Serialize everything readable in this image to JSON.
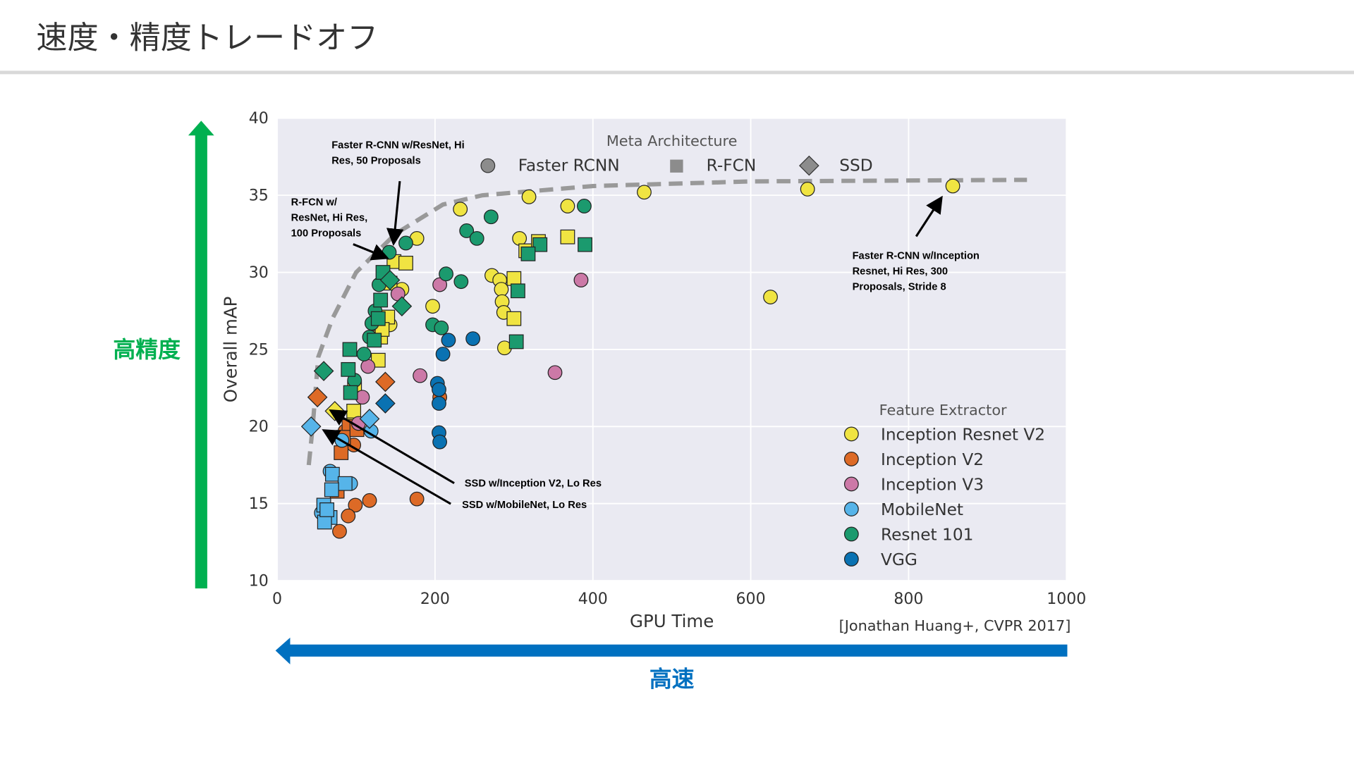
{
  "slide": {
    "title": "速度・精度トレードオフ",
    "accuracy_label": "高精度",
    "speed_label": "高速",
    "citation": "[Jonathan Huang+, CVPR 2017]",
    "colors": {
      "accuracy_arrow": "#00b050",
      "speed_arrow": "#0070c0"
    }
  },
  "chart_data": {
    "type": "scatter",
    "xlabel": "GPU Time",
    "ylabel": "Overall mAP",
    "xlim": [
      0,
      1000
    ],
    "ylim": [
      10,
      40
    ],
    "xticks": [
      "0",
      "200",
      "400",
      "600",
      "800",
      "1000"
    ],
    "yticks": [
      "10",
      "15",
      "20",
      "25",
      "30",
      "35",
      "40"
    ],
    "grid": true,
    "meta_legend": {
      "title": "Meta Architecture",
      "items": [
        {
          "label": "Faster RCNN",
          "marker": "circle"
        },
        {
          "label": "R-FCN",
          "marker": "square"
        },
        {
          "label": "SSD",
          "marker": "diamond"
        }
      ]
    },
    "feature_legend": {
      "title": "Feature Extractor",
      "placement": "bottom-right"
    },
    "series": [
      {
        "name": "Inception Resnet V2",
        "color": "#f0e442",
        "points": [
          [
            232,
            34.1,
            "c"
          ],
          [
            319,
            34.9,
            "c"
          ],
          [
            368,
            34.3,
            "c"
          ],
          [
            465,
            35.2,
            "c"
          ],
          [
            672,
            35.4,
            "c"
          ],
          [
            856,
            35.6,
            "c"
          ],
          [
            625,
            28.4,
            "c"
          ],
          [
            177,
            32.2,
            "c"
          ],
          [
            307,
            32.2,
            "c"
          ],
          [
            197,
            27.8,
            "c"
          ],
          [
            272,
            29.8,
            "c"
          ],
          [
            282,
            29.5,
            "c"
          ],
          [
            284,
            28.9,
            "c"
          ],
          [
            285,
            28.1,
            "c"
          ],
          [
            287,
            27.4,
            "c"
          ],
          [
            288,
            25.1,
            "c"
          ],
          [
            158,
            28.9,
            "c"
          ],
          [
            143,
            26.6,
            "c"
          ],
          [
            97,
            20.5,
            "c"
          ],
          [
            148,
            30.7,
            "s"
          ],
          [
            163,
            30.6,
            "s"
          ],
          [
            143,
            29.3,
            "s"
          ],
          [
            140,
            27.1,
            "s"
          ],
          [
            131,
            25.8,
            "s"
          ],
          [
            128,
            24.3,
            "s"
          ],
          [
            98,
            22.5,
            "s"
          ],
          [
            97,
            21.0,
            "s"
          ],
          [
            315,
            31.4,
            "s"
          ],
          [
            331,
            32.0,
            "s"
          ],
          [
            368,
            32.3,
            "s"
          ],
          [
            300,
            29.6,
            "s"
          ],
          [
            300,
            27.0,
            "s"
          ],
          [
            133,
            26.3,
            "s"
          ],
          [
            73,
            21.0,
            "d"
          ]
        ]
      },
      {
        "name": "Inception V2",
        "color": "#dd6a26",
        "points": [
          [
            177,
            15.3,
            "c"
          ],
          [
            117,
            15.2,
            "c"
          ],
          [
            99,
            14.9,
            "c"
          ],
          [
            90,
            14.2,
            "c"
          ],
          [
            79,
            13.2,
            "c"
          ],
          [
            206,
            21.9,
            "c"
          ],
          [
            97,
            18.8,
            "c"
          ],
          [
            86,
            19.7,
            "c"
          ],
          [
            91,
            20.0,
            "s"
          ],
          [
            84,
            19.3,
            "s"
          ],
          [
            81,
            18.3,
            "s"
          ],
          [
            101,
            19.8,
            "s"
          ],
          [
            76,
            15.8,
            "s"
          ],
          [
            51,
            21.9,
            "d"
          ],
          [
            137,
            22.9,
            "d"
          ]
        ]
      },
      {
        "name": "Inception V3",
        "color": "#cc79a7",
        "points": [
          [
            385,
            29.5,
            "c"
          ],
          [
            206,
            29.2,
            "c"
          ],
          [
            352,
            23.5,
            "c"
          ],
          [
            181,
            23.3,
            "c"
          ],
          [
            153,
            28.6,
            "c"
          ],
          [
            115,
            23.9,
            "c"
          ],
          [
            108,
            21.9,
            "c"
          ],
          [
            103,
            20.2,
            "c"
          ]
        ]
      },
      {
        "name": "MobileNet",
        "color": "#56b4e9",
        "points": [
          [
            93,
            16.3,
            "c"
          ],
          [
            82,
            19.1,
            "c"
          ],
          [
            119,
            19.7,
            "c"
          ],
          [
            67,
            17.1,
            "c"
          ],
          [
            56,
            14.4,
            "c"
          ],
          [
            70,
            16.9,
            "s"
          ],
          [
            86,
            16.3,
            "s"
          ],
          [
            69,
            15.9,
            "s"
          ],
          [
            59,
            14.9,
            "s"
          ],
          [
            67,
            14.1,
            "s"
          ],
          [
            60,
            13.8,
            "s"
          ],
          [
            63,
            14.6,
            "s"
          ],
          [
            43,
            20.0,
            "d"
          ],
          [
            117,
            20.5,
            "d"
          ]
        ]
      },
      {
        "name": "Resnet 101",
        "color": "#1b9a6e",
        "points": [
          [
            271,
            33.6,
            "c"
          ],
          [
            240,
            32.7,
            "c"
          ],
          [
            253,
            32.2,
            "c"
          ],
          [
            389,
            34.3,
            "c"
          ],
          [
            163,
            31.9,
            "c"
          ],
          [
            142,
            31.3,
            "c"
          ],
          [
            214,
            29.9,
            "c"
          ],
          [
            233,
            29.4,
            "c"
          ],
          [
            197,
            26.6,
            "c"
          ],
          [
            208,
            26.4,
            "c"
          ],
          [
            129,
            29.2,
            "c"
          ],
          [
            124,
            27.5,
            "c"
          ],
          [
            120,
            26.7,
            "c"
          ],
          [
            117,
            25.8,
            "c"
          ],
          [
            110,
            24.7,
            "c"
          ],
          [
            98,
            23.0,
            "c"
          ],
          [
            333,
            31.8,
            "s"
          ],
          [
            318,
            31.2,
            "s"
          ],
          [
            390,
            31.8,
            "s"
          ],
          [
            305,
            28.8,
            "s"
          ],
          [
            303,
            25.5,
            "s"
          ],
          [
            134,
            30.0,
            "s"
          ],
          [
            131,
            28.2,
            "s"
          ],
          [
            128,
            27.0,
            "s"
          ],
          [
            92,
            25.0,
            "s"
          ],
          [
            90,
            23.7,
            "s"
          ],
          [
            93,
            22.2,
            "s"
          ],
          [
            123,
            25.6,
            "s"
          ],
          [
            59,
            23.6,
            "d"
          ],
          [
            158,
            27.8,
            "d"
          ],
          [
            143,
            29.5,
            "d"
          ]
        ]
      },
      {
        "name": "VGG",
        "color": "#0a72b2",
        "points": [
          [
            217,
            25.6,
            "c"
          ],
          [
            248,
            25.7,
            "c"
          ],
          [
            210,
            24.7,
            "c"
          ],
          [
            203,
            22.8,
            "c"
          ],
          [
            205,
            22.4,
            "c"
          ],
          [
            205,
            21.5,
            "c"
          ],
          [
            205,
            19.6,
            "c"
          ],
          [
            206,
            19.0,
            "c"
          ],
          [
            137,
            21.5,
            "d"
          ]
        ]
      }
    ],
    "frontier": [
      [
        40,
        17.5
      ],
      [
        45,
        20
      ],
      [
        52,
        24.5
      ],
      [
        70,
        27
      ],
      [
        100,
        30
      ],
      [
        150,
        32.5
      ],
      [
        210,
        34.4
      ],
      [
        260,
        35.0
      ],
      [
        400,
        35.6
      ],
      [
        600,
        35.9
      ],
      [
        950,
        36.0
      ]
    ],
    "annotations": [
      {
        "lines": [
          "Faster R-CNN w/ResNet, Hi",
          "Res, 50 Proposals"
        ]
      },
      {
        "lines": [
          "R-FCN w/",
          "ResNet, Hi Res,",
          "100 Proposals"
        ]
      },
      {
        "lines": [
          "SSD w/Inception V2, Lo Res"
        ]
      },
      {
        "lines": [
          "SSD w/MobileNet, Lo Res"
        ]
      },
      {
        "lines": [
          "Faster R-CNN w/Inception",
          "Resnet, Hi Res, 300",
          "Proposals, Stride 8"
        ]
      }
    ]
  }
}
